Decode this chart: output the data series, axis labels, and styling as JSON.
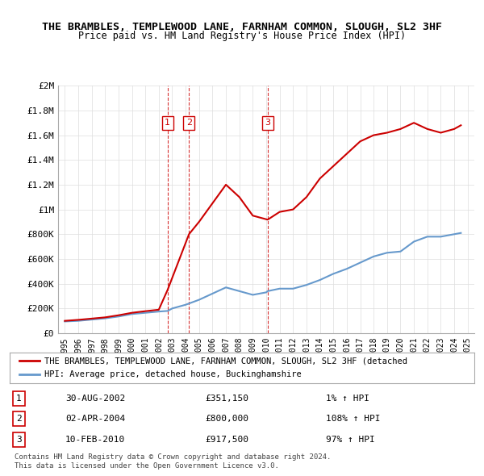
{
  "title": "THE BRAMBLES, TEMPLEWOOD LANE, FARNHAM COMMON, SLOUGH, SL2 3HF",
  "subtitle": "Price paid vs. HM Land Registry's House Price Index (HPI)",
  "legend_line1": "THE BRAMBLES, TEMPLEWOOD LANE, FARNHAM COMMON, SLOUGH, SL2 3HF (detached",
  "legend_line2": "HPI: Average price, detached house, Buckinghamshire",
  "footer1": "Contains HM Land Registry data © Crown copyright and database right 2024.",
  "footer2": "This data is licensed under the Open Government Licence v3.0.",
  "transactions": [
    {
      "num": "1",
      "date": "30-AUG-2002",
      "price": "£351,150",
      "hpi": "1% ↑ HPI"
    },
    {
      "num": "2",
      "date": "02-APR-2004",
      "price": "£800,000",
      "hpi": "108% ↑ HPI"
    },
    {
      "num": "3",
      "date": "10-FEB-2010",
      "price": "£917,500",
      "hpi": "97% ↑ HPI"
    }
  ],
  "transaction_years": [
    2002.66,
    2004.25,
    2010.11
  ],
  "transaction_prices": [
    351150,
    800000,
    917500
  ],
  "hpi_years": [
    1995,
    1996,
    1997,
    1998,
    1999,
    2000,
    2001,
    2002,
    2002.66,
    2003,
    2004,
    2004.25,
    2005,
    2006,
    2007,
    2008,
    2009,
    2010,
    2010.11,
    2011,
    2012,
    2013,
    2014,
    2015,
    2016,
    2017,
    2018,
    2019,
    2020,
    2021,
    2022,
    2023,
    2024,
    2024.5
  ],
  "hpi_values": [
    95000,
    100000,
    110000,
    120000,
    135000,
    155000,
    165000,
    175000,
    180000,
    200000,
    230000,
    240000,
    270000,
    320000,
    370000,
    340000,
    310000,
    330000,
    340000,
    360000,
    360000,
    390000,
    430000,
    480000,
    520000,
    570000,
    620000,
    650000,
    660000,
    740000,
    780000,
    780000,
    800000,
    810000
  ],
  "red_line_years": [
    1995,
    1996,
    1997,
    1998,
    1999,
    2000,
    2001,
    2002,
    2002.66,
    2004.25,
    2005,
    2006,
    2007,
    2008,
    2009,
    2010.11,
    2011,
    2012,
    2013,
    2014,
    2015,
    2016,
    2017,
    2018,
    2019,
    2020,
    2021,
    2022,
    2023,
    2024,
    2024.5
  ],
  "red_line_values": [
    100000,
    108000,
    118000,
    128000,
    145000,
    165000,
    178000,
    190000,
    351150,
    800000,
    900000,
    1050000,
    1200000,
    1100000,
    950000,
    917500,
    980000,
    1000000,
    1100000,
    1250000,
    1350000,
    1450000,
    1550000,
    1600000,
    1620000,
    1650000,
    1700000,
    1650000,
    1620000,
    1650000,
    1680000
  ],
  "red_color": "#cc0000",
  "blue_color": "#6699cc",
  "vline_color": "#cc0000",
  "bg_color": "#ffffff",
  "grid_color": "#dddddd",
  "ylim": [
    0,
    2000000
  ],
  "xlim": [
    1994.5,
    2025.5
  ],
  "yticks": [
    0,
    200000,
    400000,
    600000,
    800000,
    1000000,
    1200000,
    1400000,
    1600000,
    1800000,
    2000000
  ],
  "ytick_labels": [
    "£0",
    "£200K",
    "£400K",
    "£600K",
    "£800K",
    "£1M",
    "£1.2M",
    "£1.4M",
    "£1.6M",
    "£1.8M",
    "£2M"
  ],
  "xticks": [
    1995,
    1996,
    1997,
    1998,
    1999,
    2000,
    2001,
    2002,
    2003,
    2004,
    2005,
    2006,
    2007,
    2008,
    2009,
    2010,
    2011,
    2012,
    2013,
    2014,
    2015,
    2016,
    2017,
    2018,
    2019,
    2020,
    2021,
    2022,
    2023,
    2024,
    2025
  ]
}
